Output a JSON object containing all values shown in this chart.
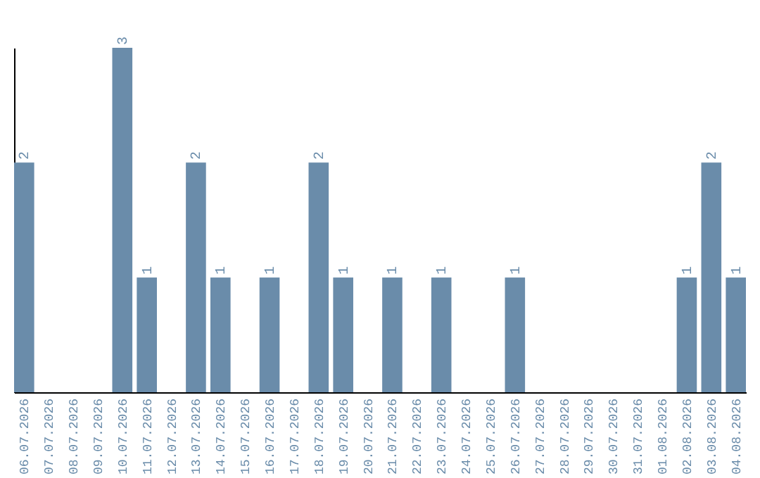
{
  "chart_data": {
    "type": "bar",
    "categories": [
      "06.07.2026",
      "07.07.2026",
      "08.07.2026",
      "09.07.2026",
      "10.07.2026",
      "11.07.2026",
      "12.07.2026",
      "13.07.2026",
      "14.07.2026",
      "15.07.2026",
      "16.07.2026",
      "17.07.2026",
      "18.07.2026",
      "19.07.2026",
      "20.07.2026",
      "21.07.2026",
      "22.07.2026",
      "23.07.2026",
      "24.07.2026",
      "25.07.2026",
      "26.07.2026",
      "27.07.2026",
      "28.07.2026",
      "29.07.2026",
      "30.07.2026",
      "31.07.2026",
      "01.08.2026",
      "02.08.2026",
      "03.08.2026",
      "04.08.2026"
    ],
    "values": [
      2,
      0,
      0,
      0,
      3,
      1,
      0,
      2,
      1,
      0,
      1,
      0,
      2,
      1,
      0,
      1,
      0,
      1,
      0,
      0,
      1,
      0,
      0,
      0,
      0,
      0,
      0,
      1,
      2,
      1
    ],
    "value_labels": [
      "2",
      null,
      null,
      null,
      "3",
      "1",
      null,
      "2",
      "1",
      null,
      "1",
      null,
      "2",
      "1",
      null,
      "1",
      null,
      "1",
      null,
      null,
      "1",
      null,
      null,
      null,
      null,
      null,
      null,
      "1",
      "2",
      "1"
    ],
    "color": "#6a8caa",
    "tick_labels": "x",
    "grid": false
  }
}
